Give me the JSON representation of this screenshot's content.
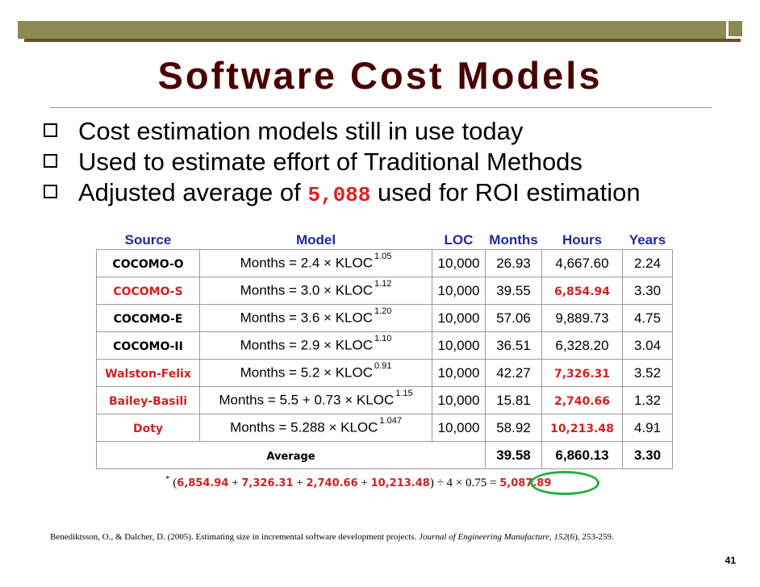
{
  "slide": {
    "title": "Software Cost Models",
    "bullets": [
      {
        "text": "Cost estimation models still in use today"
      },
      {
        "text": "Used to estimate effort of Traditional Methods"
      },
      {
        "pre": "Adjusted average of ",
        "highlight": "5,088",
        "post": " used for ROI estimation"
      }
    ],
    "table": {
      "headers": [
        "Source",
        "Model",
        "LOC",
        "Months",
        "Hours",
        "Years"
      ],
      "rows": [
        {
          "source": "COCOMO-O",
          "source_color": "black",
          "formula": "Months = 2.4 × KLOC",
          "exp": "1.05",
          "loc": "10,000",
          "months": "26.93",
          "hours": "4,667.60",
          "hours_red": false,
          "years": "2.24"
        },
        {
          "source": "COCOMO-S",
          "source_color": "red",
          "formula": "Months = 3.0 × KLOC",
          "exp": "1.12",
          "loc": "10,000",
          "months": "39.55",
          "hours": "6,854.94",
          "hours_red": true,
          "years": "3.30"
        },
        {
          "source": "COCOMO-E",
          "source_color": "black",
          "formula": "Months = 3.6 × KLOC",
          "exp": "1.20",
          "loc": "10,000",
          "months": "57.06",
          "hours": "9,889.73",
          "hours_red": false,
          "years": "4.75"
        },
        {
          "source": "COCOMO-II",
          "source_color": "black",
          "formula": "Months = 2.9 × KLOC",
          "exp": "1.10",
          "loc": "10,000",
          "months": "36.51",
          "hours": "6,328.20",
          "hours_red": false,
          "years": "3.04"
        },
        {
          "source": "Walston-Felix",
          "source_color": "red",
          "formula": "Months = 5.2 × KLOC",
          "exp": "0.91",
          "loc": "10,000",
          "months": "42.27",
          "hours": "7,326.31",
          "hours_red": true,
          "years": "3.52"
        },
        {
          "source": "Bailey-Basili",
          "source_color": "red",
          "formula": "Months = 5.5 + 0.73 × KLOC",
          "exp": "1.15",
          "loc": "10,000",
          "months": "15.81",
          "hours": "2,740.66",
          "hours_red": true,
          "years": "1.32"
        },
        {
          "source": "Doty",
          "source_color": "red",
          "formula": "Months = 5.288 × KLOC",
          "exp": "1.047",
          "loc": "10,000",
          "months": "58.92",
          "hours": "10,213.48",
          "hours_red": true,
          "years": "4.91"
        }
      ],
      "average": {
        "label": "Average",
        "months": "39.58",
        "hours": "6,860.13",
        "years": "3.30"
      }
    },
    "calculation": {
      "asterisk": "*",
      "open": "(",
      "terms": [
        "6,854.94",
        "7,326.31",
        "2,740.66",
        "10,213.48"
      ],
      "plus": "+",
      "tail": ") ÷ 4 × 0.75 =",
      "result": "5,087.89"
    },
    "citation": {
      "authors": "Benediktsson, O., & Dalcher, D. (2005). Estimating size in incremental software development projects.",
      "journal": "Journal of Engineering Manufacture, 152",
      "rest": "(6), 253-259."
    },
    "page_number": "41",
    "colors": {
      "title": "#4a0000",
      "header_blue": "#1e2a9c",
      "highlight_red": "#d42020",
      "oval_green": "#20b040",
      "bar": "#8a8a52"
    }
  }
}
